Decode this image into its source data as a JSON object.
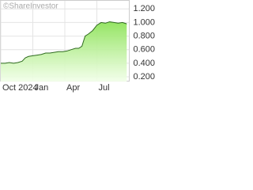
{
  "chart_data": {
    "type": "area",
    "watermark": "©ShareInvestor",
    "x": [
      0,
      0.4,
      0.8,
      1.2,
      1.6,
      2.0,
      2.3,
      2.6,
      3.0,
      3.4,
      3.8,
      4.2,
      4.6,
      5.0,
      5.4,
      5.8,
      6.2,
      6.6,
      7.0,
      7.3,
      7.6,
      7.9,
      8.2,
      8.6,
      9.0,
      9.4,
      9.8,
      10.2,
      10.6,
      11.0,
      11.4,
      11.8
    ],
    "values": [
      0.4,
      0.4,
      0.41,
      0.4,
      0.41,
      0.43,
      0.48,
      0.5,
      0.51,
      0.52,
      0.53,
      0.55,
      0.55,
      0.56,
      0.57,
      0.57,
      0.58,
      0.6,
      0.62,
      0.62,
      0.65,
      0.8,
      0.83,
      0.88,
      0.96,
      1.0,
      0.99,
      1.01,
      1.0,
      0.99,
      1.0,
      0.98
    ],
    "xlim": [
      0,
      12
    ],
    "xticks": [
      {
        "value": 0,
        "label": "Oct 2024"
      },
      {
        "value": 3,
        "label": "Jan"
      },
      {
        "value": 6,
        "label": "Apr"
      },
      {
        "value": 9,
        "label": "Jul"
      }
    ],
    "ylim": [
      0.13,
      1.32
    ],
    "yticks": [
      {
        "value": 0.2,
        "label": "0.200"
      },
      {
        "value": 0.4,
        "label": "0.400"
      },
      {
        "value": 0.6,
        "label": "0.600"
      },
      {
        "value": 0.8,
        "label": "0.800"
      },
      {
        "value": 1.0,
        "label": "1.000"
      },
      {
        "value": 1.2,
        "label": "1.200"
      }
    ],
    "grid": true,
    "color": "#2f6b1f",
    "fill_color": "#9be86a"
  }
}
